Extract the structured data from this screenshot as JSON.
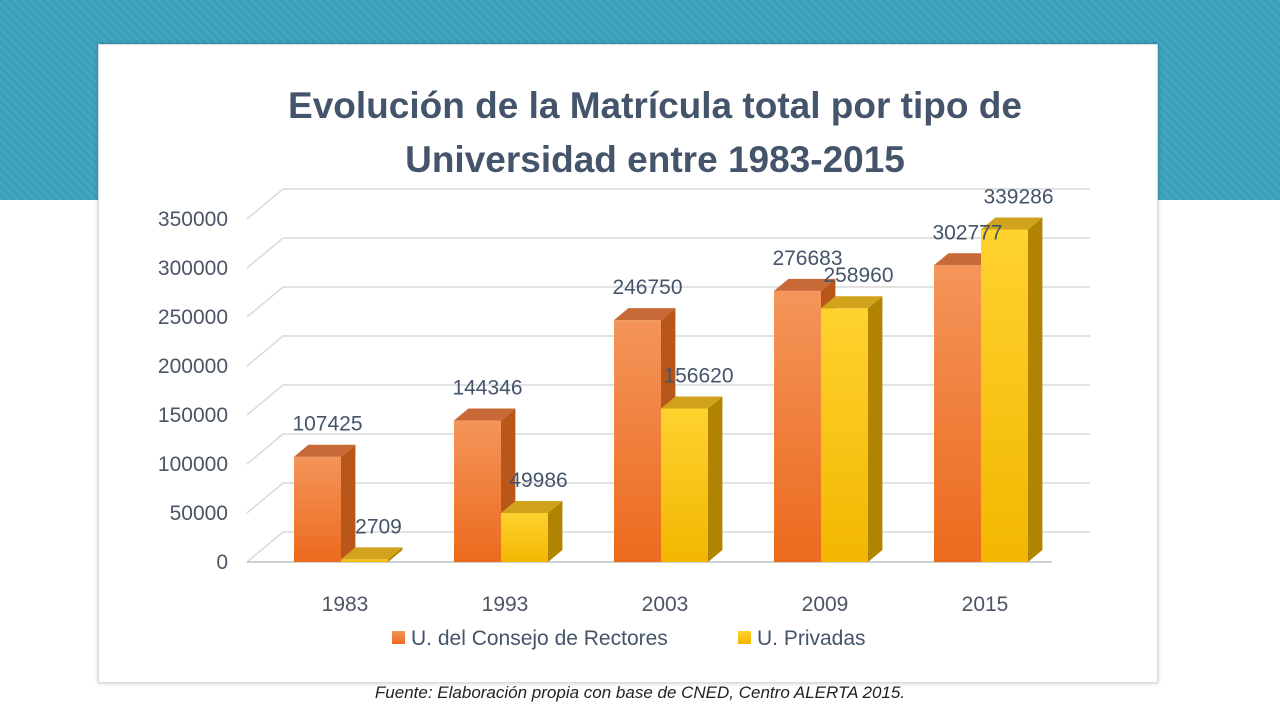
{
  "chart_data": {
    "type": "bar",
    "title_lines": [
      "Evolución de la Matrícula total por tipo de",
      "Universidad entre 1983-2015"
    ],
    "categories": [
      "1983",
      "1993",
      "2003",
      "2009",
      "2015"
    ],
    "series": [
      {
        "name": "U. del Consejo de Rectores",
        "values": [
          107425,
          144346,
          246750,
          276683,
          302777
        ],
        "labels": [
          "107425",
          "144346",
          "246750",
          "276683",
          "302777"
        ]
      },
      {
        "name": "U. Privadas",
        "values": [
          2709,
          49986,
          156620,
          258960,
          339286
        ],
        "labels": [
          "2709",
          "49986",
          "156620",
          "258960",
          "339286"
        ]
      }
    ],
    "y_ticks": [
      "0",
      "50000",
      "100000",
      "150000",
      "200000",
      "250000",
      "300000",
      "350000"
    ],
    "ylim": [
      0,
      350000
    ],
    "grid": true,
    "style": "3d-clustered-column",
    "legend_position": "bottom",
    "colors": {
      "series1_light": "#f4955a",
      "series1_dark": "#ec6a1d",
      "series1_side": "#b9571b",
      "series1_top": "#c86a37",
      "series2_light": "#ffd22e",
      "series2_dark": "#f2b700",
      "series2_side": "#b08400",
      "series2_top": "#d1a21b",
      "grid": "#d9d9d9",
      "title": "#44546a"
    }
  },
  "source_note": "Fuente: Elaboración propia con base de CNED, Centro ALERTA 2015."
}
